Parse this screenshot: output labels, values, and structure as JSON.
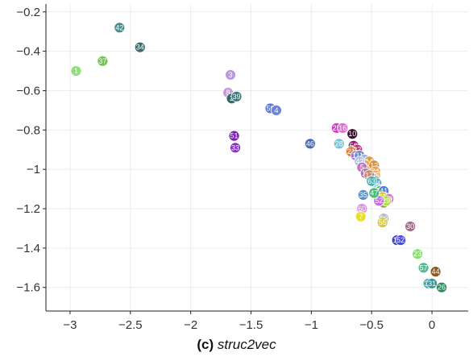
{
  "chart_data": {
    "type": "scatter",
    "title": "",
    "xlabel": "",
    "ylabel": "",
    "xlim": [
      -3.2,
      0.3
    ],
    "ylim": [
      -1.72,
      -0.16
    ],
    "xticks": [
      -3,
      -2.5,
      -2,
      -1.5,
      -1,
      -0.5,
      0
    ],
    "xtick_labels": [
      "−3",
      "−2.5",
      "−2",
      "−1.5",
      "−1",
      "−0.5",
      "0"
    ],
    "yticks": [
      -0.2,
      -0.4,
      -0.6,
      -0.8,
      -1,
      -1.2,
      -1.4,
      -1.6
    ],
    "ytick_labels": [
      "−0.2",
      "−0.4",
      "−0.6",
      "−0.8",
      "−1",
      "−1.2",
      "−1.4",
      "−1.6"
    ],
    "grid": true,
    "points": [
      {
        "label": "42",
        "x": -2.59,
        "y": -0.28,
        "color": "#4a8a8a"
      },
      {
        "label": "34",
        "x": -2.42,
        "y": -0.38,
        "color": "#3d6e6e"
      },
      {
        "label": "37",
        "x": -2.73,
        "y": -0.45,
        "color": "#77c257"
      },
      {
        "label": "1",
        "x": -2.95,
        "y": -0.5,
        "color": "#8fe07a"
      },
      {
        "label": "3",
        "x": -1.67,
        "y": -0.52,
        "color": "#b79be0"
      },
      {
        "label": "8",
        "x": -1.69,
        "y": -0.61,
        "color": "#c89ae0"
      },
      {
        "label": "2",
        "x": -1.66,
        "y": -0.64,
        "color": "#2e6a6a"
      },
      {
        "label": "39",
        "x": -1.62,
        "y": -0.63,
        "color": "#3a7a7a"
      },
      {
        "label": "59",
        "x": -1.34,
        "y": -0.69,
        "color": "#5b78d6"
      },
      {
        "label": "4",
        "x": -1.29,
        "y": -0.7,
        "color": "#6d82d8"
      },
      {
        "label": "51",
        "x": -1.64,
        "y": -0.83,
        "color": "#7a1fb0"
      },
      {
        "label": "33",
        "x": -1.63,
        "y": -0.89,
        "color": "#8a2fc0"
      },
      {
        "label": "46",
        "x": -1.01,
        "y": -0.87,
        "color": "#4a6ab0"
      },
      {
        "label": "28",
        "x": -0.77,
        "y": -0.87,
        "color": "#7ec0d8"
      },
      {
        "label": "25",
        "x": -0.79,
        "y": -0.79,
        "color": "#d040c8"
      },
      {
        "label": "16",
        "x": -0.74,
        "y": -0.79,
        "color": "#e070d0"
      },
      {
        "label": "10",
        "x": -0.66,
        "y": -0.82,
        "color": "#3a0a2a"
      },
      {
        "label": "58",
        "x": -0.65,
        "y": -0.88,
        "color": "#8a1a6a"
      },
      {
        "label": "32",
        "x": -0.62,
        "y": -0.9,
        "color": "#c0287a"
      },
      {
        "label": "21",
        "x": -0.67,
        "y": -0.91,
        "color": "#e08030"
      },
      {
        "label": "13",
        "x": -0.63,
        "y": -0.93,
        "color": "#a07ad8"
      },
      {
        "label": "11",
        "x": -0.6,
        "y": -0.93,
        "color": "#6a8ad0"
      },
      {
        "label": "19",
        "x": -0.56,
        "y": -0.95,
        "color": "#9ab0e8"
      },
      {
        "label": "14",
        "x": -0.52,
        "y": -0.96,
        "color": "#d8a040"
      },
      {
        "label": "9",
        "x": -0.55,
        "y": -0.98,
        "color": "#f0a050"
      },
      {
        "label": "43",
        "x": -0.6,
        "y": -0.96,
        "color": "#b0c0e0"
      },
      {
        "label": "5",
        "x": -0.58,
        "y": -0.99,
        "color": "#c078c0"
      },
      {
        "label": "22",
        "x": -0.5,
        "y": -1.0,
        "color": "#e09838"
      },
      {
        "label": "12",
        "x": -0.48,
        "y": -0.98,
        "color": "#d89040"
      },
      {
        "label": "24",
        "x": -0.47,
        "y": -1.01,
        "color": "#e8a050"
      },
      {
        "label": "15",
        "x": -0.47,
        "y": -1.03,
        "color": "#f0b060"
      },
      {
        "label": "6",
        "x": -0.5,
        "y": -1.04,
        "color": "#d8b050"
      },
      {
        "label": "18",
        "x": -0.55,
        "y": -1.02,
        "color": "#b078b0"
      },
      {
        "label": "17",
        "x": -0.52,
        "y": -1.03,
        "color": "#c88870"
      },
      {
        "label": "56",
        "x": -0.47,
        "y": -1.06,
        "color": "#3aa8a0"
      },
      {
        "label": "54",
        "x": -0.46,
        "y": -1.07,
        "color": "#60a0d0"
      },
      {
        "label": "63",
        "x": -0.5,
        "y": -1.06,
        "color": "#4ab0b0"
      },
      {
        "label": "48",
        "x": -0.45,
        "y": -1.1,
        "color": "#a0d8f0"
      },
      {
        "label": "36",
        "x": -0.43,
        "y": -1.11,
        "color": "#50c060"
      },
      {
        "label": "38",
        "x": -0.42,
        "y": -1.12,
        "color": "#e04040"
      },
      {
        "label": "41",
        "x": -0.4,
        "y": -1.11,
        "color": "#5080e0"
      },
      {
        "label": "57",
        "x": -0.41,
        "y": -1.14,
        "color": "#d0d040"
      },
      {
        "label": "49",
        "x": -0.36,
        "y": -1.15,
        "color": "#e060e0"
      },
      {
        "label": "45",
        "x": -0.4,
        "y": -1.17,
        "color": "#9a9a6a"
      },
      {
        "label": "29",
        "x": -0.38,
        "y": -1.16,
        "color": "#b0e040"
      },
      {
        "label": "52",
        "x": -0.44,
        "y": -1.16,
        "color": "#c070e0"
      },
      {
        "label": "47",
        "x": -0.48,
        "y": -1.12,
        "color": "#40c070"
      },
      {
        "label": "35",
        "x": -0.57,
        "y": -1.13,
        "color": "#5a90c8"
      },
      {
        "label": "60",
        "x": -0.58,
        "y": -1.2,
        "color": "#d890e0"
      },
      {
        "label": "7",
        "x": -0.59,
        "y": -1.24,
        "color": "#e8e030"
      },
      {
        "label": "50",
        "x": -0.4,
        "y": -1.25,
        "color": "#a8b8d0"
      },
      {
        "label": "55",
        "x": -0.41,
        "y": -1.27,
        "color": "#d8c840"
      },
      {
        "label": "30",
        "x": -0.18,
        "y": -1.29,
        "color": "#a06a8a"
      },
      {
        "label": "17",
        "x": -0.29,
        "y": -1.36,
        "color": "#3a3ad0"
      },
      {
        "label": "52",
        "x": -0.26,
        "y": -1.36,
        "color": "#4a4ae0"
      },
      {
        "label": "23",
        "x": -0.12,
        "y": -1.43,
        "color": "#88e070"
      },
      {
        "label": "57",
        "x": -0.07,
        "y": -1.5,
        "color": "#5ab890"
      },
      {
        "label": "44",
        "x": 0.03,
        "y": -1.52,
        "color": "#8a5a1a"
      },
      {
        "label": "30",
        "x": -0.03,
        "y": -1.58,
        "color": "#4aa8a8"
      },
      {
        "label": "31",
        "x": 0.0,
        "y": -1.58,
        "color": "#3a9898"
      },
      {
        "label": "26",
        "x": 0.08,
        "y": -1.6,
        "color": "#2e8a5e"
      }
    ]
  },
  "caption": {
    "prefix": "(c)",
    "text": "struc2vec"
  }
}
